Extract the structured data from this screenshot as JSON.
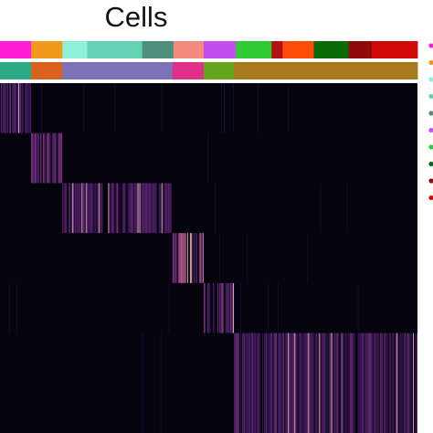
{
  "chart_data": {
    "type": "heatmap",
    "title": "Cells",
    "cell_type_bar": [
      {
        "color": "#ff1fd6",
        "cells": 34
      },
      {
        "color": "#f39a1c",
        "cells": 34
      },
      {
        "color": "#8ff0d8",
        "cells": 27
      },
      {
        "color": "#62d2b2",
        "cells": 60
      },
      {
        "color": "#4d8f7a",
        "cells": 34
      },
      {
        "color": "#f48a7c",
        "cells": 33
      },
      {
        "color": "#c050f0",
        "cells": 35
      },
      {
        "color": "#2ecb35",
        "cells": 39
      },
      {
        "color": "#b50f14",
        "cells": 12
      },
      {
        "color": "#ff4a08",
        "cells": 34
      },
      {
        "color": "#086b08",
        "cells": 38
      },
      {
        "color": "#8f0a0a",
        "cells": 25
      },
      {
        "color": "#d10808",
        "cells": 50
      }
    ],
    "cluster_bar": [
      {
        "color": "#2fa887",
        "cells": 34
      },
      {
        "color": "#d9621c",
        "cells": 34
      },
      {
        "color": "#7c72b8",
        "cells": 120
      },
      {
        "color": "#e0308a",
        "cells": 34
      },
      {
        "color": "#66a61e",
        "cells": 33
      },
      {
        "color": "#a8781e",
        "cells": 200
      }
    ],
    "blocks": [
      {
        "cell_start": 0,
        "cell_end": 34,
        "gene_start": 0,
        "gene_end": 55,
        "intensity": 0.55
      },
      {
        "cell_start": 34,
        "cell_end": 68,
        "gene_start": 55,
        "gene_end": 110,
        "intensity": 0.6
      },
      {
        "cell_start": 68,
        "cell_end": 188,
        "gene_start": 110,
        "gene_end": 165,
        "intensity": 0.55
      },
      {
        "cell_start": 188,
        "cell_end": 222,
        "gene_start": 165,
        "gene_end": 220,
        "intensity": 0.8
      },
      {
        "cell_start": 222,
        "cell_end": 255,
        "gene_start": 220,
        "gene_end": 275,
        "intensity": 0.6
      },
      {
        "cell_start": 255,
        "cell_end": 455,
        "gene_start": 275,
        "gene_end": 385,
        "intensity": 0.55
      }
    ],
    "legend_marker_colors": [
      "#ff1fd6",
      "#f39a1c",
      "#8ff0d8",
      "#62d2b2",
      "#4d8f7a",
      "#c050f0",
      "#2ecb35",
      "#086b08",
      "#8f0a0a",
      "#d10808"
    ]
  }
}
